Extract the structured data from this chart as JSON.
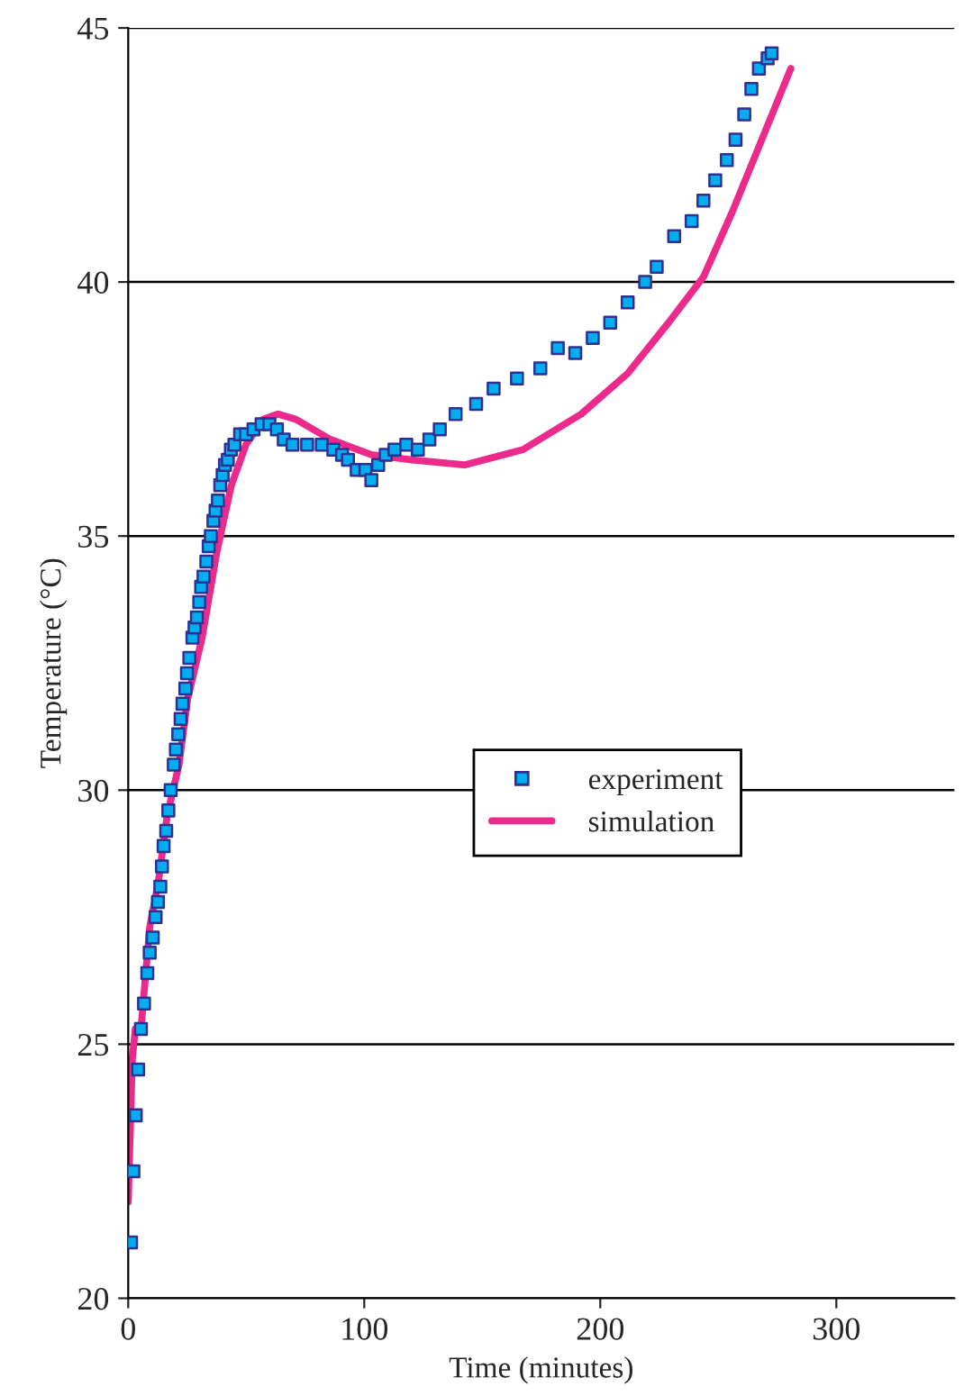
{
  "chart_data": {
    "type": "scatter",
    "xlabel": "Time (minutes)",
    "ylabel": "Temperature (°C)",
    "xlim": [
      0,
      350
    ],
    "xticks": [
      0,
      100,
      200,
      300
    ],
    "ylim": [
      20,
      45
    ],
    "yticks": [
      20,
      25,
      30,
      35,
      40,
      45
    ],
    "grid": "y",
    "legend": "center right",
    "series": [
      {
        "name": "experiment",
        "marker": "square",
        "color": "#00aeef",
        "x": [
          1.2,
          2.2,
          3.2,
          4.2,
          5.4,
          6.7,
          8.1,
          9.1,
          10.4,
          11.6,
          12.6,
          13.6,
          14.3,
          15.0,
          16.1,
          17.0,
          18.0,
          19.3,
          20.2,
          21.2,
          22.2,
          23.0,
          24.2,
          24.9,
          25.9,
          27.2,
          28.1,
          29.1,
          30.1,
          30.9,
          31.9,
          33.1,
          34.1,
          35.0,
          36.1,
          37.0,
          38.0,
          39.0,
          40.0,
          41.0,
          42.2,
          43.5,
          45.0,
          47.4,
          49.9,
          53.1,
          56.5,
          59.8,
          63.0,
          65.9,
          69.6,
          75.8,
          82.0,
          86.9,
          90.6,
          93.1,
          96.8,
          100.5,
          103.0,
          105.9,
          109.1,
          112.8,
          117.8,
          122.7,
          127.6,
          132.0,
          138.7,
          147.4,
          154.8,
          164.7,
          174.6,
          182.0,
          189.4,
          196.8,
          204.2,
          211.6,
          219.0,
          223.9,
          231.3,
          238.7,
          243.7,
          248.7,
          253.6,
          257.3,
          261.0,
          264.0,
          267.2,
          270.9,
          272.6
        ],
        "values": [
          21.1,
          22.5,
          23.6,
          24.5,
          25.3,
          25.8,
          26.4,
          26.8,
          27.1,
          27.5,
          27.8,
          28.1,
          28.5,
          28.9,
          29.2,
          29.6,
          30.0,
          30.5,
          30.8,
          31.1,
          31.4,
          31.7,
          32.0,
          32.3,
          32.6,
          33.0,
          33.2,
          33.4,
          33.7,
          34.0,
          34.2,
          34.5,
          34.8,
          35.0,
          35.3,
          35.5,
          35.7,
          36.0,
          36.2,
          36.4,
          36.5,
          36.7,
          36.8,
          37.0,
          37.0,
          37.1,
          37.2,
          37.2,
          37.1,
          36.9,
          36.8,
          36.8,
          36.8,
          36.7,
          36.6,
          36.5,
          36.3,
          36.3,
          36.1,
          36.4,
          36.6,
          36.7,
          36.8,
          36.7,
          36.9,
          37.1,
          37.4,
          37.6,
          37.9,
          38.1,
          38.3,
          38.7,
          38.6,
          38.9,
          39.2,
          39.6,
          40.0,
          40.3,
          40.9,
          41.2,
          41.6,
          42.0,
          42.4,
          42.8,
          43.3,
          43.8,
          44.2,
          44.4,
          44.5
        ]
      },
      {
        "name": "simulation",
        "type": "line",
        "marker": "none",
        "line_style": "solid",
        "color": "#ec2a8c",
        "x": [
          0,
          1.7,
          3,
          5.4,
          9.1,
          12.8,
          16.5,
          21.5,
          25.2,
          31.3,
          37.6,
          43.7,
          49.9,
          57.3,
          63.5,
          70.9,
          85.7,
          103,
          120.2,
          142.5,
          167.2,
          191.9,
          211.6,
          228.9,
          243.7,
          256.1,
          268.4,
          280.7
        ],
        "values": [
          21.9,
          24.7,
          25.3,
          25.3,
          27.3,
          28.2,
          29.5,
          30.5,
          31.8,
          33.0,
          34.7,
          36.0,
          36.8,
          37.3,
          37.4,
          37.3,
          36.9,
          36.6,
          36.5,
          36.4,
          36.7,
          37.4,
          38.2,
          39.2,
          40.1,
          41.4,
          42.8,
          44.2
        ]
      }
    ]
  }
}
